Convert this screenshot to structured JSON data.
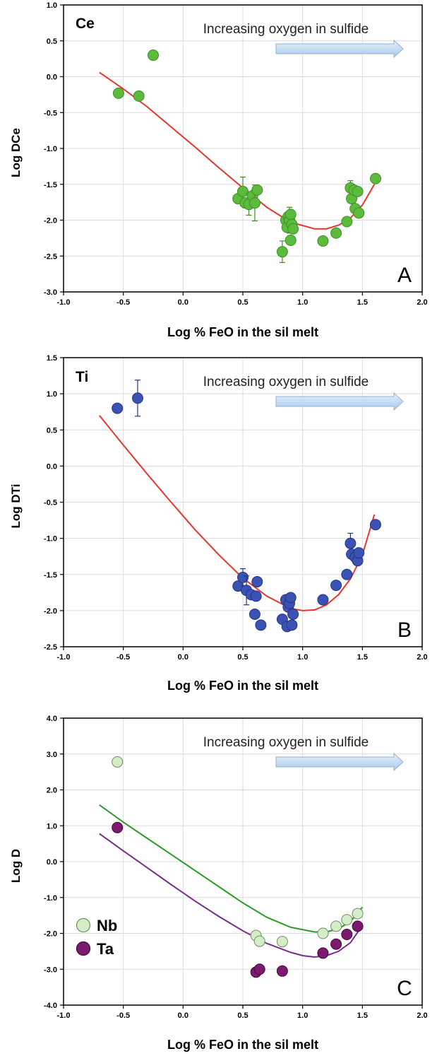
{
  "chart_data": [
    {
      "type": "scatter",
      "panel_letter": "A",
      "element_label": "Ce",
      "annotation": "Increasing oxygen in sulfide",
      "xlabel": "Log % FeO in the sil melt",
      "ylabel": "Log DCe",
      "xlim": [
        -1.0,
        2.0
      ],
      "ylim": [
        -3.0,
        1.0
      ],
      "xticks": [
        "-1.0",
        "-0.5",
        "0.0",
        "0.5",
        "1.0",
        "1.5",
        "2.0"
      ],
      "yticks": [
        "-3.0",
        "-2.5",
        "-2.0",
        "-1.5",
        "-1.0",
        "-0.5",
        "0.0",
        "0.5",
        "1.0"
      ],
      "grid": true,
      "marker_color": "#5cba3c",
      "marker_edge": "#3e8e27",
      "fit_color": "#e8352a",
      "fit": [
        [
          -0.7,
          0.06
        ],
        [
          -0.5,
          -0.17
        ],
        [
          -0.3,
          -0.42
        ],
        [
          -0.1,
          -0.7
        ],
        [
          0.1,
          -0.98
        ],
        [
          0.3,
          -1.27
        ],
        [
          0.5,
          -1.55
        ],
        [
          0.7,
          -1.82
        ],
        [
          0.9,
          -2.03
        ],
        [
          1.1,
          -2.12
        ],
        [
          1.2,
          -2.12
        ],
        [
          1.3,
          -2.07
        ],
        [
          1.4,
          -1.97
        ],
        [
          1.5,
          -1.79
        ],
        [
          1.6,
          -1.5
        ]
      ],
      "points": [
        {
          "x": -0.54,
          "y": -0.23
        },
        {
          "x": -0.37,
          "y": -0.27
        },
        {
          "x": -0.25,
          "y": 0.3,
          "err": 0.06
        },
        {
          "x": 0.46,
          "y": -1.7
        },
        {
          "x": 0.5,
          "y": -1.6,
          "err": 0.2
        },
        {
          "x": 0.52,
          "y": -1.76
        },
        {
          "x": 0.55,
          "y": -1.78,
          "err": 0.15
        },
        {
          "x": 0.58,
          "y": -1.66
        },
        {
          "x": 0.6,
          "y": -1.76,
          "err": 0.25
        },
        {
          "x": 0.62,
          "y": -1.58
        },
        {
          "x": 0.83,
          "y": -2.44,
          "err": 0.15
        },
        {
          "x": 0.86,
          "y": -2.0
        },
        {
          "x": 0.87,
          "y": -2.1
        },
        {
          "x": 0.88,
          "y": -1.95
        },
        {
          "x": 0.89,
          "y": -2.0,
          "err": 0.18
        },
        {
          "x": 0.9,
          "y": -1.92
        },
        {
          "x": 0.9,
          "y": -2.28
        },
        {
          "x": 0.91,
          "y": -2.06
        },
        {
          "x": 0.92,
          "y": -2.12
        },
        {
          "x": 1.17,
          "y": -2.29
        },
        {
          "x": 1.28,
          "y": -2.18
        },
        {
          "x": 1.37,
          "y": -2.02
        },
        {
          "x": 1.4,
          "y": -1.55,
          "err": 0.1
        },
        {
          "x": 1.41,
          "y": -1.7
        },
        {
          "x": 1.43,
          "y": -1.58
        },
        {
          "x": 1.44,
          "y": -1.84
        },
        {
          "x": 1.46,
          "y": -1.6
        },
        {
          "x": 1.47,
          "y": -1.9
        },
        {
          "x": 1.61,
          "y": -1.42
        }
      ]
    },
    {
      "type": "scatter",
      "panel_letter": "B",
      "element_label": "Ti",
      "annotation": "Increasing oxygen in sulfide",
      "xlabel": "Log % FeO in the sil melt",
      "ylabel": "Log DTi",
      "xlim": [
        -1.0,
        2.0
      ],
      "ylim": [
        -2.5,
        1.5
      ],
      "xticks": [
        "-1.0",
        "-0.5",
        "0.0",
        "0.5",
        "1.0",
        "1.5",
        "2.0"
      ],
      "yticks": [
        "-2.5",
        "-2.0",
        "-1.5",
        "-1.0",
        "-0.5",
        "0.0",
        "0.5",
        "1.0",
        "1.5"
      ],
      "grid": true,
      "marker_color": "#3a52b4",
      "marker_edge": "#26367e",
      "fit_color": "#e8352a",
      "fit": [
        [
          -0.7,
          0.7
        ],
        [
          -0.5,
          0.29
        ],
        [
          -0.3,
          -0.11
        ],
        [
          -0.1,
          -0.5
        ],
        [
          0.1,
          -0.88
        ],
        [
          0.3,
          -1.23
        ],
        [
          0.5,
          -1.55
        ],
        [
          0.7,
          -1.8
        ],
        [
          0.9,
          -1.97
        ],
        [
          1.0,
          -2.0
        ],
        [
          1.1,
          -1.99
        ],
        [
          1.2,
          -1.92
        ],
        [
          1.3,
          -1.78
        ],
        [
          1.4,
          -1.56
        ],
        [
          1.5,
          -1.23
        ],
        [
          1.6,
          -0.67
        ]
      ],
      "points": [
        {
          "x": -0.55,
          "y": 0.8
        },
        {
          "x": -0.38,
          "y": 0.94,
          "err": 0.25
        },
        {
          "x": 0.46,
          "y": -1.66
        },
        {
          "x": 0.5,
          "y": -1.54,
          "err": 0.12
        },
        {
          "x": 0.53,
          "y": -1.72,
          "err": 0.2
        },
        {
          "x": 0.57,
          "y": -1.78
        },
        {
          "x": 0.6,
          "y": -2.05
        },
        {
          "x": 0.61,
          "y": -1.8
        },
        {
          "x": 0.62,
          "y": -1.6
        },
        {
          "x": 0.65,
          "y": -2.2
        },
        {
          "x": 0.83,
          "y": -2.12
        },
        {
          "x": 0.86,
          "y": -1.85
        },
        {
          "x": 0.87,
          "y": -2.22
        },
        {
          "x": 0.88,
          "y": -1.95
        },
        {
          "x": 0.89,
          "y": -1.9,
          "err": 0.12
        },
        {
          "x": 0.9,
          "y": -1.82
        },
        {
          "x": 0.91,
          "y": -2.2
        },
        {
          "x": 0.92,
          "y": -2.05
        },
        {
          "x": 1.17,
          "y": -1.85
        },
        {
          "x": 1.28,
          "y": -1.65
        },
        {
          "x": 1.37,
          "y": -1.5
        },
        {
          "x": 1.4,
          "y": -1.07,
          "err": 0.14
        },
        {
          "x": 1.41,
          "y": -1.22
        },
        {
          "x": 1.44,
          "y": -1.26
        },
        {
          "x": 1.46,
          "y": -1.31
        },
        {
          "x": 1.47,
          "y": -1.2
        },
        {
          "x": 1.61,
          "y": -0.81
        }
      ]
    },
    {
      "type": "scatter",
      "panel_letter": "C",
      "annotation": "Increasing oxygen in sulfide",
      "xlabel": "Log % FeO in the sil melt",
      "ylabel": "Log D",
      "xlim": [
        -1.0,
        2.0
      ],
      "ylim": [
        -4.0,
        4.0
      ],
      "xticks": [
        "-1.0",
        "-0.5",
        "0.0",
        "0.5",
        "1.0",
        "1.5",
        "2.0"
      ],
      "yticks": [
        "-4.0",
        "-3.0",
        "-2.0",
        "-1.0",
        "0.0",
        "1.0",
        "2.0",
        "3.0",
        "4.0"
      ],
      "grid": true,
      "legend_position": "bottom-left",
      "series": [
        {
          "name": "Nb",
          "marker_color": "#d4ecc8",
          "marker_edge": "#6f8f60",
          "fit_color": "#2e9a2a",
          "fit": [
            [
              -0.7,
              1.58
            ],
            [
              -0.5,
              1.1
            ],
            [
              -0.3,
              0.65
            ],
            [
              -0.1,
              0.2
            ],
            [
              0.1,
              -0.25
            ],
            [
              0.3,
              -0.7
            ],
            [
              0.5,
              -1.15
            ],
            [
              0.7,
              -1.55
            ],
            [
              0.9,
              -1.83
            ],
            [
              1.1,
              -1.96
            ],
            [
              1.2,
              -1.96
            ],
            [
              1.3,
              -1.87
            ],
            [
              1.4,
              -1.67
            ],
            [
              1.5,
              -1.27
            ]
          ],
          "points": [
            {
              "x": -0.55,
              "y": 2.78
            },
            {
              "x": 0.61,
              "y": -2.06
            },
            {
              "x": 0.64,
              "y": -2.22
            },
            {
              "x": 0.83,
              "y": -2.23
            },
            {
              "x": 1.17,
              "y": -2.0
            },
            {
              "x": 1.28,
              "y": -1.8
            },
            {
              "x": 1.37,
              "y": -1.62
            },
            {
              "x": 1.46,
              "y": -1.45
            }
          ]
        },
        {
          "name": "Ta",
          "marker_color": "#7b1a6e",
          "marker_edge": "#3f0a39",
          "fit_color": "#7a2c8e",
          "fit": [
            [
              -0.7,
              0.78
            ],
            [
              -0.5,
              0.3
            ],
            [
              -0.3,
              -0.17
            ],
            [
              -0.1,
              -0.64
            ],
            [
              0.1,
              -1.1
            ],
            [
              0.3,
              -1.53
            ],
            [
              0.5,
              -1.93
            ],
            [
              0.7,
              -2.28
            ],
            [
              0.9,
              -2.53
            ],
            [
              1.0,
              -2.62
            ],
            [
              1.1,
              -2.66
            ],
            [
              1.2,
              -2.62
            ],
            [
              1.3,
              -2.5
            ],
            [
              1.4,
              -2.26
            ],
            [
              1.5,
              -1.78
            ]
          ],
          "points": [
            {
              "x": -0.55,
              "y": 0.95
            },
            {
              "x": 0.61,
              "y": -3.08
            },
            {
              "x": 0.64,
              "y": -3.0
            },
            {
              "x": 0.83,
              "y": -3.05
            },
            {
              "x": 1.17,
              "y": -2.55
            },
            {
              "x": 1.28,
              "y": -2.3
            },
            {
              "x": 1.37,
              "y": -2.03
            },
            {
              "x": 1.46,
              "y": -1.8
            }
          ]
        }
      ]
    }
  ]
}
